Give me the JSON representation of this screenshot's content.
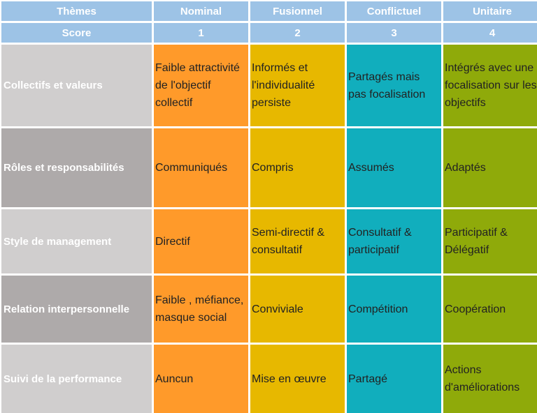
{
  "header": {
    "themes": "Thèmes",
    "levels": [
      "Nominal",
      "Fusionnel",
      "Conflictuel",
      "Unitaire"
    ]
  },
  "score_row": {
    "label": "Score",
    "scores": [
      "1",
      "2",
      "3",
      "4"
    ]
  },
  "colors": {
    "header_blue": "#9dc3e6",
    "nominal_orange": "#ff9a2a",
    "fusionnel_yellow": "#e7b800",
    "conflictuel_teal": "#11aebd",
    "unitaire_green": "#8faa0a",
    "theme_light_gray": "#d0cece",
    "theme_dark_gray": "#aeaaaa"
  },
  "rows": [
    {
      "theme": "Collectifs et valeurs",
      "cells": [
        "Faible attractivité de l'objectif collectif",
        "Informés et l'individualité persiste",
        "Partagés mais pas focalisation",
        "Intégrés avec une focalisation sur les objectifs"
      ]
    },
    {
      "theme": "Rôles et responsabilités",
      "cells": [
        "Communiqués",
        "Compris",
        "Assumés",
        "Adaptés"
      ]
    },
    {
      "theme": "Style de management",
      "cells": [
        "Directif",
        "Semi-directif & consultatif",
        "Consultatif & participatif",
        "Participatif & Délégatif"
      ]
    },
    {
      "theme": "Relation interpersonnelle",
      "cells": [
        "Faible , méfiance, masque social",
        "Conviviale",
        "Compétition",
        "Coopération"
      ]
    },
    {
      "theme": "Suivi de la performance",
      "cells": [
        "Auncun",
        "Mise en œuvre",
        "Partagé",
        "Actions d'améliorations"
      ]
    }
  ]
}
